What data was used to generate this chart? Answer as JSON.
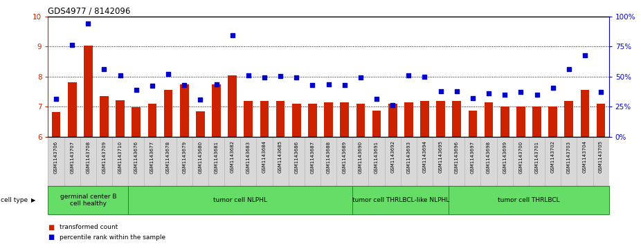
{
  "title": "GDS4977 / 8142096",
  "samples": [
    "GSM1143706",
    "GSM1143707",
    "GSM1143708",
    "GSM1143709",
    "GSM1143710",
    "GSM1143676",
    "GSM1143677",
    "GSM1143678",
    "GSM1143679",
    "GSM1143680",
    "GSM1143681",
    "GSM1143682",
    "GSM1143683",
    "GSM1143684",
    "GSM1143685",
    "GSM1143686",
    "GSM1143687",
    "GSM1143688",
    "GSM1143689",
    "GSM1143690",
    "GSM1143691",
    "GSM1143692",
    "GSM1143693",
    "GSM1143694",
    "GSM1143695",
    "GSM1143696",
    "GSM1143697",
    "GSM1143698",
    "GSM1143699",
    "GSM1143700",
    "GSM1143701",
    "GSM1143702",
    "GSM1143703",
    "GSM1143704",
    "GSM1143705"
  ],
  "bar_values": [
    6.82,
    7.82,
    9.02,
    7.35,
    7.22,
    6.98,
    7.1,
    7.55,
    7.75,
    6.85,
    7.75,
    8.05,
    7.2,
    7.18,
    7.18,
    7.1,
    7.1,
    7.15,
    7.15,
    7.1,
    6.88,
    7.1,
    7.15,
    7.2,
    7.18,
    7.18,
    6.88,
    7.15,
    7.0,
    7.0,
    7.0,
    7.0,
    7.18,
    7.55,
    7.1
  ],
  "dot_values": [
    7.25,
    9.05,
    9.75,
    8.25,
    8.05,
    7.55,
    7.7,
    8.08,
    7.72,
    7.23,
    7.75,
    9.38,
    8.05,
    7.98,
    8.02,
    7.97,
    7.72,
    7.75,
    7.72,
    7.98,
    7.25,
    7.05,
    8.05,
    8.0,
    7.5,
    7.5,
    7.28,
    7.45,
    7.4,
    7.48,
    7.4,
    7.62,
    8.25,
    8.7,
    7.48
  ],
  "ylim_left": [
    6,
    10
  ],
  "ylim_right": [
    0,
    100
  ],
  "yticks_left": [
    6,
    7,
    8,
    9,
    10
  ],
  "yticks_right": [
    0,
    25,
    50,
    75,
    100
  ],
  "bar_color": "#cc2200",
  "dot_color": "#0000cc",
  "tick_bg_color": "#d8d8d8",
  "cell_type_groups": [
    {
      "label": "germinal center B\ncell healthy",
      "start": 0,
      "end": 5
    },
    {
      "label": "tumor cell NLPHL",
      "start": 5,
      "end": 19
    },
    {
      "label": "tumor cell THRLBCL-like NLPHL",
      "start": 19,
      "end": 25
    },
    {
      "label": "tumor cell THRLBCL",
      "start": 25,
      "end": 35
    }
  ],
  "group_color": "#66dd66",
  "group_border_color": "#228822",
  "legend_bar_label": "transformed count",
  "legend_dot_label": "percentile rank within the sample",
  "cell_type_label": "cell type"
}
